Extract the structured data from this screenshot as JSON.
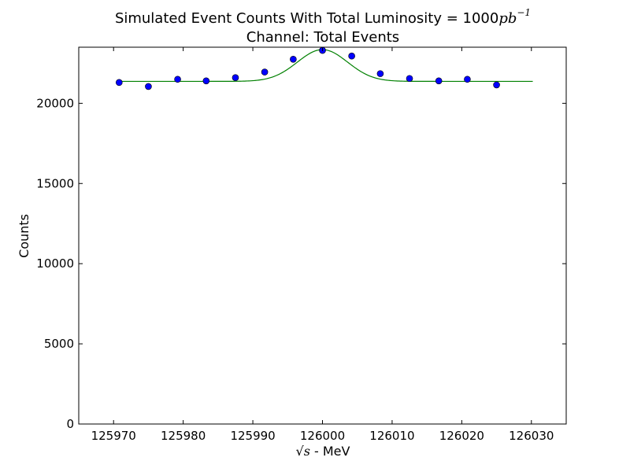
{
  "chart_data": {
    "type": "scatter",
    "title": "Simulated Event Counts With Total Luminosity = 1000",
    "title_math": "pb",
    "title_math_sup": "−1",
    "subtitle": "Channel: Total Events",
    "xlabel_math": "√s",
    "xlabel": " - MeV",
    "ylabel": "Counts",
    "xlim": [
      125965,
      126035
    ],
    "ylim": [
      0,
      23500
    ],
    "xticks": [
      125970,
      125980,
      125990,
      126000,
      126010,
      126020,
      126030
    ],
    "yticks": [
      0,
      5000,
      10000,
      15000,
      20000
    ],
    "grid": false,
    "legend": "none",
    "series": [
      {
        "kind": "points",
        "color": "#0000ff",
        "x": [
          125970.8,
          125975.0,
          125979.2,
          125983.3,
          125987.5,
          125991.7,
          125995.8,
          126000.0,
          126004.2,
          126008.3,
          126012.5,
          126016.7,
          126020.8,
          126025.0
        ],
        "y": [
          21300,
          21050,
          21500,
          21400,
          21600,
          21950,
          22750,
          23300,
          22950,
          21850,
          21550,
          21400,
          21500,
          21150
        ]
      },
      {
        "kind": "fit",
        "color": "#008000",
        "x_range": [
          125970.8,
          126030.2
        ],
        "baseline": 21370,
        "amplitude": 1980,
        "mean": 126000,
        "sigma": 3.6
      }
    ]
  }
}
